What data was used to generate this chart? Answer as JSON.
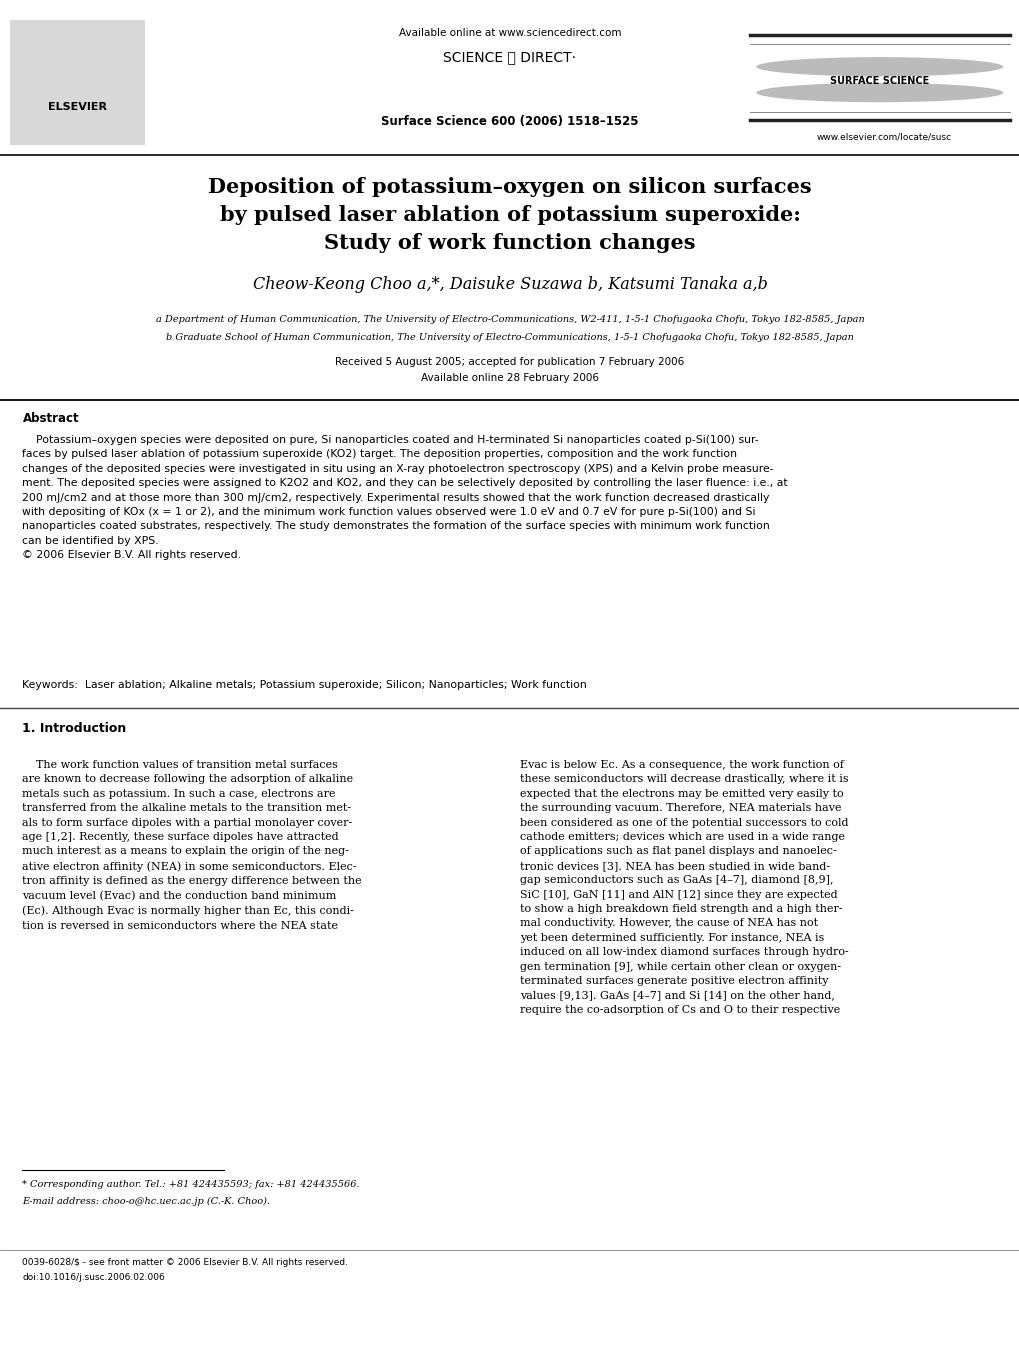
{
  "bg_color": "#ffffff",
  "available_www": "Available online at www.sciencedirect.com",
  "sciencedirect_logo": "SCIENCE ⓓ DIRECT·",
  "journal_ref": "Surface Science 600 (2006) 1518–1525",
  "journal_url": "www.elsevier.com/locate/susc",
  "surface_science": "SURFACE SCIENCE",
  "title_line1": "Deposition of potassium–oxygen on silicon surfaces",
  "title_line2": "by pulsed laser ablation of potassium superoxide:",
  "title_line3": "Study of work function changes",
  "authors": "Cheow-Keong Choo a,*, Daisuke Suzawa b, Katsumi Tanaka a,b",
  "affil_a": "a Department of Human Communication, The University of Electro-Communications, W2-411, 1-5-1 Chofugaoka Chofu, Tokyo 182-8585, Japan",
  "affil_b": "b Graduate School of Human Communication, The University of Electro-Communications, 1-5-1 Chofugaoka Chofu, Tokyo 182-8585, Japan",
  "received": "Received 5 August 2005; accepted for publication 7 February 2006",
  "available_online": "Available online 28 February 2006",
  "abstract_title": "Abstract",
  "abstract_body": "    Potassium–oxygen species were deposited on pure, Si nanoparticles coated and H-terminated Si nanoparticles coated p-Si(100) sur-\nfaces by pulsed laser ablation of potassium superoxide (KO2) target. The deposition properties, composition and the work function\nchanges of the deposited species were investigated in situ using an X-ray photoelectron spectroscopy (XPS) and a Kelvin probe measure-\nment. The deposited species were assigned to K2O2 and KO2, and they can be selectively deposited by controlling the laser fluence: i.e., at\n200 mJ/cm2 and at those more than 300 mJ/cm2, respectively. Experimental results showed that the work function decreased drastically\nwith depositing of KOx (x = 1 or 2), and the minimum work function values observed were 1.0 eV and 0.7 eV for pure p-Si(100) and Si\nnanoparticles coated substrates, respectively. The study demonstrates the formation of the surface species with minimum work function\ncan be identified by XPS.\n© 2006 Elsevier B.V. All rights reserved.",
  "keywords_label": "Keywords:",
  "keywords_text": "  Laser ablation; Alkaline metals; Potassium superoxide; Silicon; Nanoparticles; Work function",
  "sec1_title": "1. Introduction",
  "sec1_col1_indent": "    The work function values of transition metal surfaces\nare known to decrease following the adsorption of alkaline\nmetals such as potassium. In such a case, electrons are\ntransferred from the alkaline metals to the transition met-\nals to form surface dipoles with a partial monolayer cover-\nage [1,2]. Recently, these surface dipoles have attracted\nmuch interest as a means to explain the origin of the neg-\native electron affinity (NEA) in some semiconductors. Elec-\ntron affinity is defined as the energy difference between the\nvacuum level (Evac) and the conduction band minimum\n(Ec). Although Evac is normally higher than Ec, this condi-\ntion is reversed in semiconductors where the NEA state",
  "sec1_col2": "Evac is below Ec. As a consequence, the work function of\nthese semiconductors will decrease drastically, where it is\nexpected that the electrons may be emitted very easily to\nthe surrounding vacuum. Therefore, NEA materials have\nbeen considered as one of the potential successors to cold\ncathode emitters; devices which are used in a wide range\nof applications such as flat panel displays and nanoelec-\ntronic devices [3]. NEA has been studied in wide band-\ngap semiconductors such as GaAs [4–7], diamond [8,9],\nSiC [10], GaN [11] and AlN [12] since they are expected\nto show a high breakdown field strength and a high ther-\nmal conductivity. However, the cause of NEA has not\nyet been determined sufficiently. For instance, NEA is\ninduced on all low-index diamond surfaces through hydro-\ngen termination [9], while certain other clean or oxygen-\nterminated surfaces generate positive electron affinity\nvalues [9,13]. GaAs [4–7] and Si [14] on the other hand,\nrequire the co-adsorption of Cs and O to their respective",
  "footnote_line": "* Corresponding author. Tel.: +81 424435593; fax: +81 424435566.",
  "footnote_email": "E-mail address: choo-o@hc.uec.ac.jp (C.-K. Choo).",
  "footer1": "0039-6028/$ - see front matter © 2006 Elsevier B.V. All rights reserved.",
  "footer2": "doi:10.1016/j.susc.2006.02.006",
  "elsevier_text": "ELSEVIER"
}
